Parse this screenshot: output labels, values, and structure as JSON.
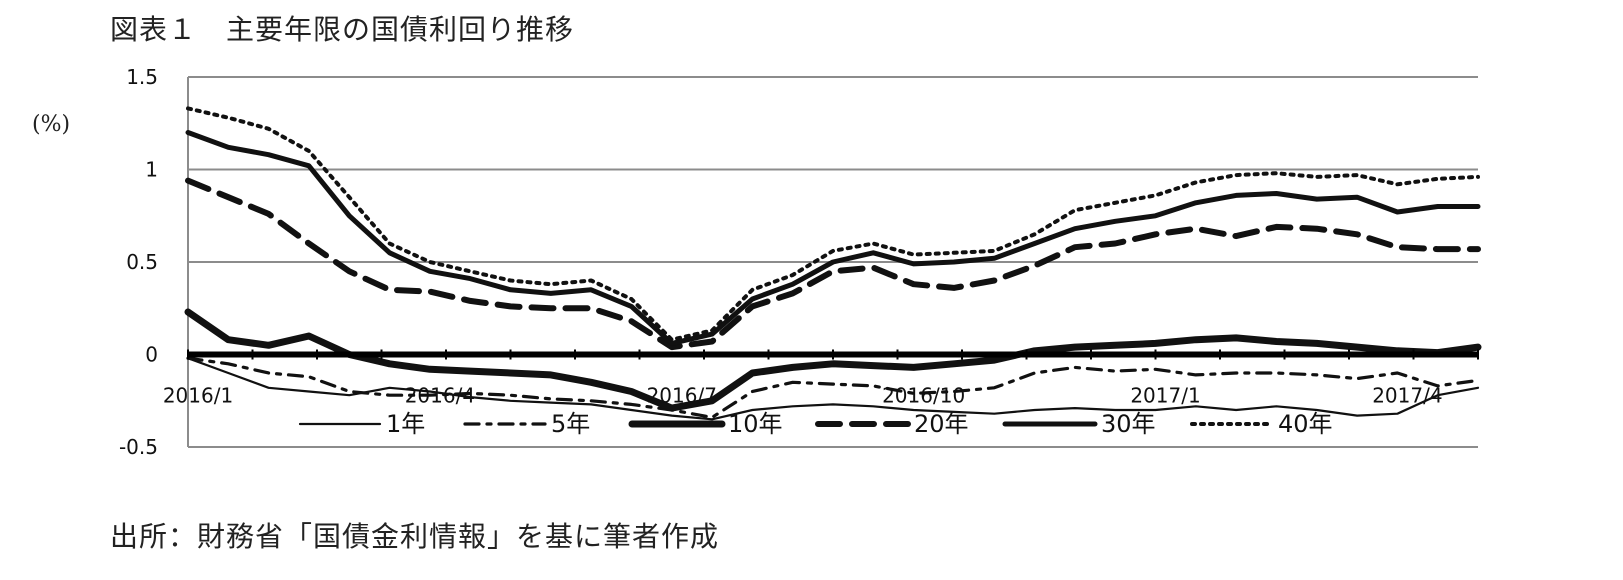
{
  "title": "図表１　主要年限の国債利回り推移",
  "source": "出所：財務省「国債金利情報」を基に筆者作成",
  "chart_data": {
    "type": "line",
    "title": "図表１　主要年限の国債利回り推移",
    "ylabel": "(%)",
    "xlabel": "",
    "ylim": [
      -0.5,
      1.5
    ],
    "yticks": [
      -0.5,
      0,
      0.5,
      1,
      1.5
    ],
    "ytick_labels": [
      "-0.5",
      "0",
      "0.5",
      "1",
      "1.5"
    ],
    "x_tick_labels": [
      "2016/1",
      "2016/4",
      "2016/7",
      "2016/10",
      "2017/1",
      "2017/4"
    ],
    "grid": true,
    "legend_position": "bottom",
    "x": [
      "2016/1/4",
      "2016/1/18",
      "2016/2/1",
      "2016/2/15",
      "2016/3/1",
      "2016/3/15",
      "2016/4/1",
      "2016/4/15",
      "2016/5/2",
      "2016/5/16",
      "2016/6/1",
      "2016/6/15",
      "2016/7/1",
      "2016/7/15",
      "2016/8/1",
      "2016/8/15",
      "2016/9/1",
      "2016/9/15",
      "2016/10/3",
      "2016/10/17",
      "2016/11/1",
      "2016/11/15",
      "2016/12/1",
      "2016/12/15",
      "2017/1/4",
      "2017/1/17",
      "2017/2/1",
      "2017/2/15",
      "2017/3/1",
      "2017/3/15",
      "2017/4/3",
      "2017/4/17",
      "2017/4/28"
    ],
    "series": [
      {
        "name": "1年",
        "style": "solid-thin",
        "values": [
          -0.02,
          -0.1,
          -0.18,
          -0.2,
          -0.22,
          -0.18,
          -0.2,
          -0.23,
          -0.25,
          -0.26,
          -0.27,
          -0.3,
          -0.33,
          -0.35,
          -0.3,
          -0.28,
          -0.27,
          -0.28,
          -0.3,
          -0.31,
          -0.32,
          -0.3,
          -0.29,
          -0.3,
          -0.3,
          -0.28,
          -0.3,
          -0.28,
          -0.3,
          -0.33,
          -0.32,
          -0.22,
          -0.18
        ]
      },
      {
        "name": "5年",
        "style": "dash-dot",
        "values": [
          -0.02,
          -0.05,
          -0.1,
          -0.12,
          -0.2,
          -0.22,
          -0.22,
          -0.21,
          -0.22,
          -0.24,
          -0.25,
          -0.27,
          -0.3,
          -0.34,
          -0.2,
          -0.15,
          -0.16,
          -0.17,
          -0.21,
          -0.2,
          -0.18,
          -0.1,
          -0.07,
          -0.09,
          -0.08,
          -0.11,
          -0.1,
          -0.1,
          -0.11,
          -0.13,
          -0.1,
          -0.17,
          -0.14
        ]
      },
      {
        "name": "10年",
        "style": "solid-thick",
        "values": [
          0.23,
          0.08,
          0.05,
          0.1,
          0.0,
          -0.05,
          -0.08,
          -0.09,
          -0.1,
          -0.11,
          -0.15,
          -0.2,
          -0.29,
          -0.25,
          -0.1,
          -0.07,
          -0.05,
          -0.06,
          -0.07,
          -0.05,
          -0.03,
          0.02,
          0.04,
          0.05,
          0.06,
          0.08,
          0.09,
          0.07,
          0.06,
          0.04,
          0.02,
          0.01,
          0.04
        ]
      },
      {
        "name": "20年",
        "style": "dash-long",
        "values": [
          0.94,
          0.85,
          0.76,
          0.6,
          0.45,
          0.35,
          0.34,
          0.29,
          0.26,
          0.25,
          0.25,
          0.18,
          0.04,
          0.07,
          0.26,
          0.33,
          0.45,
          0.47,
          0.38,
          0.36,
          0.4,
          0.48,
          0.58,
          0.6,
          0.65,
          0.68,
          0.64,
          0.69,
          0.68,
          0.65,
          0.58,
          0.57,
          0.57
        ]
      },
      {
        "name": "30年",
        "style": "solid-heavy",
        "values": [
          1.2,
          1.12,
          1.08,
          1.02,
          0.75,
          0.55,
          0.45,
          0.41,
          0.35,
          0.33,
          0.35,
          0.26,
          0.06,
          0.11,
          0.3,
          0.38,
          0.5,
          0.55,
          0.49,
          0.5,
          0.52,
          0.6,
          0.68,
          0.72,
          0.75,
          0.82,
          0.86,
          0.87,
          0.84,
          0.85,
          0.77,
          0.8,
          0.8
        ]
      },
      {
        "name": "40年",
        "style": "dotted",
        "values": [
          1.33,
          1.28,
          1.22,
          1.1,
          0.85,
          0.6,
          0.5,
          0.45,
          0.4,
          0.38,
          0.4,
          0.3,
          0.08,
          0.13,
          0.35,
          0.43,
          0.56,
          0.6,
          0.54,
          0.55,
          0.56,
          0.65,
          0.78,
          0.82,
          0.86,
          0.93,
          0.97,
          0.98,
          0.96,
          0.97,
          0.92,
          0.95,
          0.96
        ]
      }
    ]
  }
}
